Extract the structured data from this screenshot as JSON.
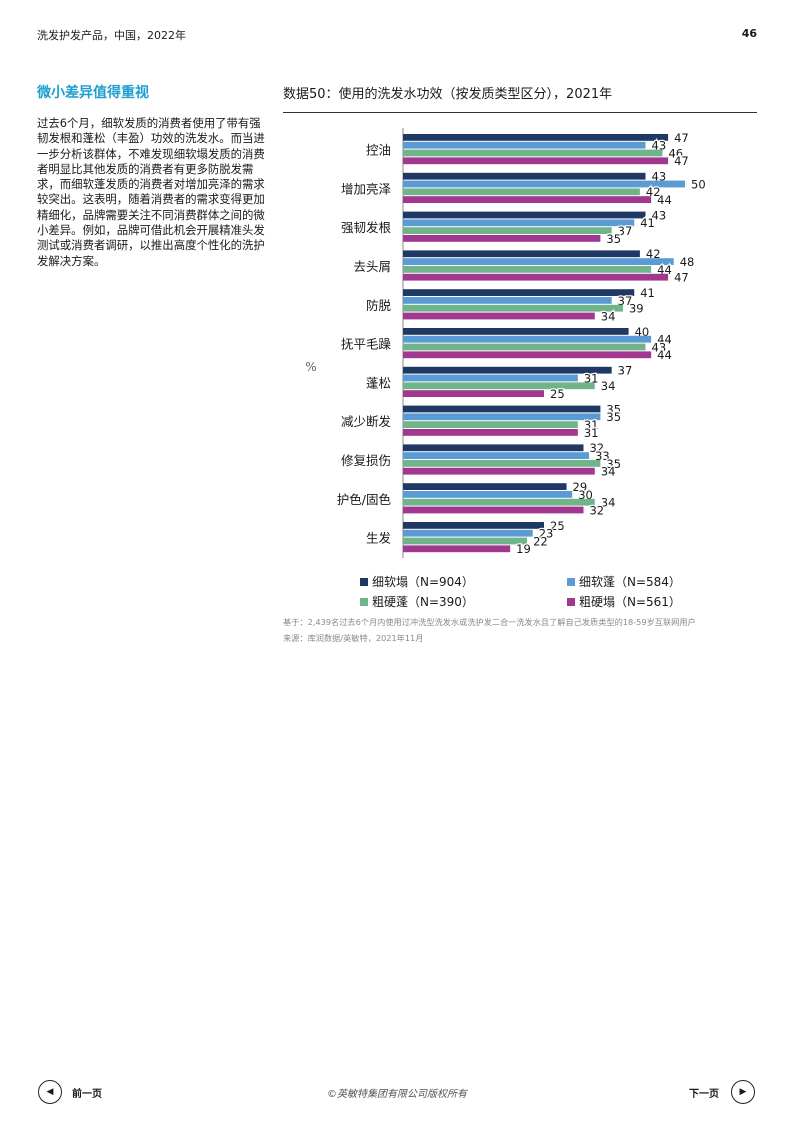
{
  "header": {
    "left": "洗发护发产品，中国，2022年",
    "page_number": "46"
  },
  "section_title": "微小差异值得重视",
  "body_text": "过去6个月，细软发质的消费者使用了带有强韧发根和蓬松（丰盈）功效的洗发水。而当进一步分析该群体，不难发现细软塌发质的消费者明显比其他发质的消费者有更多防脱发需求，而细软蓬发质的消费者对增加亮泽的需求较突出。这表明，随着消费者的需求变得更加精细化，品牌需要关注不同消费群体之间的微小差异。例如，品牌可借此机会开展精准头发测试或消费者调研，以推出高度个性化的洗护发解决方案。",
  "figure_title": "数据50：使用的洗发水功效（按发质类型区分），2021年",
  "chart_data": {
    "type": "bar",
    "orientation": "horizontal",
    "ylabel": "%",
    "categories": [
      "控油",
      "增加亮泽",
      "强韧发根",
      "去头屑",
      "防脱",
      "抚平毛躁",
      "蓬松",
      "减少断发",
      "修复损伤",
      "护色/固色",
      "生发"
    ],
    "series": [
      {
        "name": "细软塌（N=904）",
        "color": "#1f3864",
        "values": [
          47,
          43,
          43,
          42,
          41,
          40,
          37,
          35,
          32,
          29,
          25
        ]
      },
      {
        "name": "细软蓬（N=584）",
        "color": "#5b9bd5",
        "values": [
          43,
          50,
          41,
          48,
          37,
          44,
          31,
          35,
          33,
          30,
          23
        ]
      },
      {
        "name": "粗硬蓬（N=390）",
        "color": "#70b58a",
        "values": [
          46,
          42,
          37,
          44,
          39,
          43,
          34,
          31,
          35,
          34,
          22
        ]
      },
      {
        "name": "粗硬塌（N=561）",
        "color": "#a2378f",
        "values": [
          47,
          44,
          35,
          47,
          34,
          44,
          25,
          31,
          34,
          32,
          19
        ]
      }
    ],
    "xlim": [
      0,
      50
    ],
    "legend": "bottom"
  },
  "footnotes": {
    "base": "基于：2,439名过去6个月内使用过冲洗型洗发水或洗护发二合一洗发水且了解自己发质类型的18-59岁互联网用户",
    "source": "来源：库润数据/英敏特，2021年11月"
  },
  "footer": {
    "prev": "前一页",
    "next": "下一页",
    "copyright": "©英敏特集团有限公司版权所有"
  }
}
